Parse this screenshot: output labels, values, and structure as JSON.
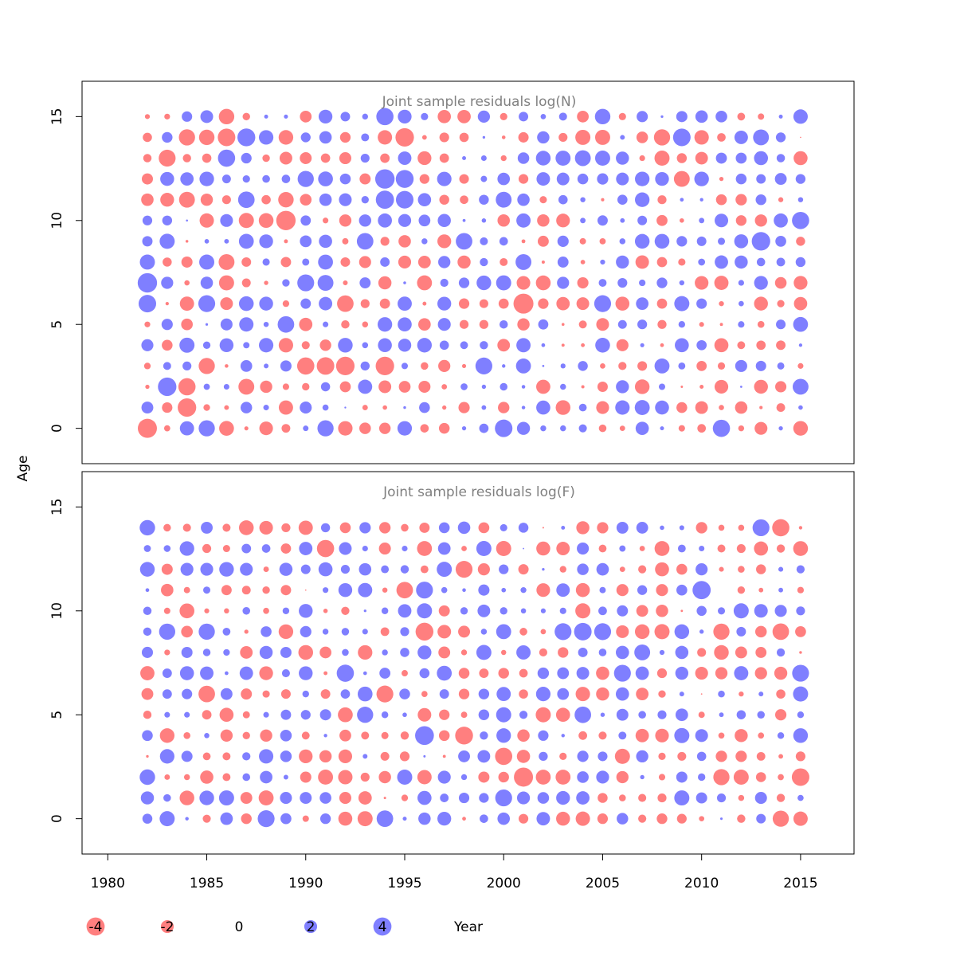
{
  "chart_data": {
    "type": "scatter",
    "subtype": "bubble",
    "ylabel": "Age",
    "xlabel": "Year",
    "colors": {
      "negative": "#ff0000",
      "positive": "#0000ff",
      "fill_opacity": 0.5,
      "panel_title": "#808080"
    },
    "x_range": [
      1980,
      2015
    ],
    "years": [
      1982,
      2015
    ],
    "ages": [
      0,
      15
    ],
    "x_ticks": [
      1980,
      1985,
      1990,
      1995,
      2000,
      2005,
      2010,
      2015
    ],
    "y_ticks": [
      0,
      5,
      10,
      15
    ],
    "ylim": [
      -1.7,
      16.7
    ],
    "xlim": [
      1978.7,
      2017.7
    ],
    "panels": [
      {
        "title": "Joint sample residuals log(N)",
        "ages_shown": [
          0,
          15
        ],
        "seed": 7321,
        "highlights": [
          {
            "year": 1982,
            "age": 0,
            "value": -3.2
          },
          {
            "year": 1982,
            "age": 7,
            "value": 3.3
          },
          {
            "year": 1982,
            "age": 6,
            "value": 2.7
          },
          {
            "year": 1982,
            "age": 8,
            "value": 2.0
          },
          {
            "year": 1983,
            "age": 2,
            "value": 3.0
          },
          {
            "year": 1983,
            "age": 13,
            "value": -2.5
          },
          {
            "year": 1984,
            "age": 1,
            "value": -3.0
          },
          {
            "year": 1984,
            "age": 2,
            "value": -2.6
          },
          {
            "year": 1984,
            "age": 14,
            "value": -2.3
          },
          {
            "year": 1984,
            "age": 11,
            "value": -2.2
          },
          {
            "year": 1985,
            "age": 0,
            "value": 2.3
          },
          {
            "year": 1985,
            "age": 3,
            "value": -2.3
          },
          {
            "year": 1985,
            "age": 6,
            "value": 2.5
          },
          {
            "year": 1985,
            "age": 14,
            "value": -2.1
          },
          {
            "year": 1986,
            "age": 15,
            "value": -2.1
          },
          {
            "year": 1986,
            "age": 14,
            "value": -2.7
          },
          {
            "year": 1986,
            "age": 13,
            "value": 2.6
          },
          {
            "year": 1986,
            "age": 8,
            "value": -2.2
          },
          {
            "year": 1987,
            "age": 14,
            "value": 2.8
          },
          {
            "year": 1987,
            "age": 11,
            "value": 2.4
          },
          {
            "year": 1987,
            "age": 2,
            "value": -2.2
          },
          {
            "year": 1989,
            "age": 10,
            "value": -3.3
          },
          {
            "year": 1989,
            "age": 5,
            "value": 2.4
          },
          {
            "year": 1989,
            "age": 11,
            "value": -2.1
          },
          {
            "year": 1990,
            "age": 3,
            "value": -2.6
          },
          {
            "year": 1990,
            "age": 7,
            "value": 2.5
          },
          {
            "year": 1990,
            "age": 12,
            "value": 2.3
          },
          {
            "year": 1991,
            "age": 3,
            "value": -2.7
          },
          {
            "year": 1991,
            "age": 0,
            "value": 2.3
          },
          {
            "year": 1991,
            "age": 7,
            "value": 2.2
          },
          {
            "year": 1992,
            "age": 3,
            "value": -3.0
          },
          {
            "year": 1992,
            "age": 6,
            "value": -2.4
          },
          {
            "year": 1993,
            "age": 9,
            "value": 2.4
          },
          {
            "year": 1994,
            "age": 3,
            "value": -3.0
          },
          {
            "year": 1994,
            "age": 12,
            "value": 3.3
          },
          {
            "year": 1994,
            "age": 11,
            "value": 2.9
          },
          {
            "year": 1994,
            "age": 15,
            "value": 2.6
          },
          {
            "year": 1995,
            "age": 14,
            "value": -3.0
          },
          {
            "year": 1995,
            "age": 12,
            "value": 2.8
          },
          {
            "year": 1995,
            "age": 11,
            "value": 2.7
          },
          {
            "year": 1998,
            "age": 9,
            "value": 2.4
          },
          {
            "year": 1999,
            "age": 3,
            "value": 2.5
          },
          {
            "year": 2000,
            "age": 0,
            "value": 2.7
          },
          {
            "year": 2000,
            "age": 11,
            "value": 2.2
          },
          {
            "year": 2001,
            "age": 6,
            "value": -3.5
          },
          {
            "year": 2001,
            "age": 8,
            "value": 2.2
          },
          {
            "year": 2004,
            "age": 13,
            "value": 2.2
          },
          {
            "year": 2005,
            "age": 6,
            "value": 2.5
          },
          {
            "year": 2005,
            "age": 15,
            "value": 2.1
          },
          {
            "year": 2008,
            "age": 14,
            "value": -2.3
          },
          {
            "year": 2009,
            "age": 14,
            "value": 2.7
          },
          {
            "year": 2009,
            "age": 12,
            "value": -2.2
          },
          {
            "year": 2011,
            "age": 0,
            "value": 2.6
          },
          {
            "year": 2013,
            "age": 9,
            "value": 3.0
          },
          {
            "year": 2013,
            "age": 14,
            "value": 2.2
          },
          {
            "year": 2015,
            "age": 10,
            "value": 2.6
          },
          {
            "year": 2015,
            "age": 2,
            "value": 2.2
          }
        ]
      },
      {
        "title": "Joint sample residuals log(F)",
        "ages_shown": [
          0,
          14
        ],
        "seed": 4187,
        "highlights": [
          {
            "year": 1982,
            "age": 14,
            "value": 2.1
          },
          {
            "year": 1982,
            "age": 2,
            "value": 2.1
          },
          {
            "year": 1983,
            "age": 9,
            "value": 2.3
          },
          {
            "year": 1985,
            "age": 6,
            "value": -2.4
          },
          {
            "year": 1985,
            "age": 9,
            "value": 2.3
          },
          {
            "year": 1988,
            "age": 0,
            "value": 2.5
          },
          {
            "year": 1991,
            "age": 13,
            "value": -2.6
          },
          {
            "year": 1992,
            "age": 7,
            "value": 2.6
          },
          {
            "year": 1993,
            "age": 5,
            "value": 2.3
          },
          {
            "year": 1994,
            "age": 0,
            "value": 2.4
          },
          {
            "year": 1994,
            "age": 6,
            "value": -2.5
          },
          {
            "year": 1995,
            "age": 11,
            "value": -2.4
          },
          {
            "year": 1996,
            "age": 4,
            "value": 3.1
          },
          {
            "year": 1996,
            "age": 9,
            "value": -2.8
          },
          {
            "year": 1996,
            "age": 11,
            "value": 2.5
          },
          {
            "year": 1998,
            "age": 4,
            "value": -2.8
          },
          {
            "year": 1998,
            "age": 12,
            "value": -2.5
          },
          {
            "year": 2000,
            "age": 3,
            "value": -2.6
          },
          {
            "year": 2000,
            "age": 1,
            "value": 2.5
          },
          {
            "year": 2001,
            "age": 2,
            "value": -3.2
          },
          {
            "year": 2003,
            "age": 9,
            "value": 2.5
          },
          {
            "year": 2004,
            "age": 9,
            "value": 2.7
          },
          {
            "year": 2004,
            "age": 5,
            "value": 2.4
          },
          {
            "year": 2005,
            "age": 9,
            "value": 2.5
          },
          {
            "year": 2006,
            "age": 7,
            "value": 2.5
          },
          {
            "year": 2007,
            "age": 8,
            "value": 2.2
          },
          {
            "year": 2010,
            "age": 11,
            "value": 2.9
          },
          {
            "year": 2011,
            "age": 9,
            "value": -2.3
          },
          {
            "year": 2011,
            "age": 2,
            "value": -2.3
          },
          {
            "year": 2013,
            "age": 14,
            "value": 2.5
          },
          {
            "year": 2014,
            "age": 14,
            "value": -2.6
          },
          {
            "year": 2014,
            "age": 9,
            "value": -2.4
          },
          {
            "year": 2014,
            "age": 0,
            "value": -2.3
          },
          {
            "year": 2015,
            "age": 7,
            "value": 2.5
          },
          {
            "year": 2015,
            "age": 2,
            "value": -2.7
          }
        ]
      }
    ],
    "legend": {
      "items": [
        {
          "label": "-4",
          "value": -4
        },
        {
          "label": "-2",
          "value": -2
        },
        {
          "label": "0",
          "value": 0
        },
        {
          "label": "2",
          "value": 2
        },
        {
          "label": "4",
          "value": 4
        }
      ],
      "title": "Year"
    }
  }
}
